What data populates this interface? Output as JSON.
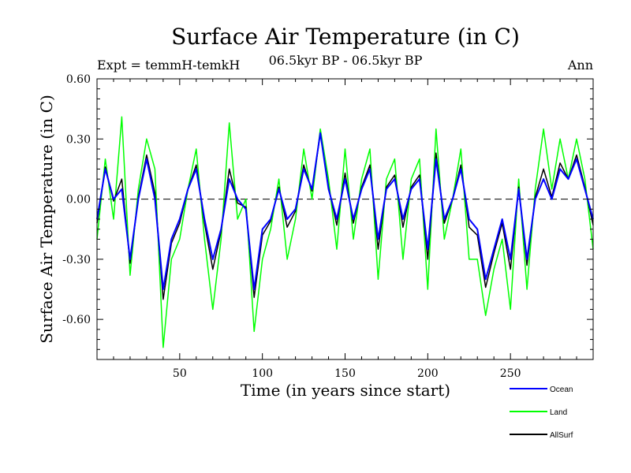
{
  "chart_data": {
    "type": "line",
    "title": "Surface Air Temperature (in C)",
    "subtitle": "06.5kyr BP - 06.5kyr BP",
    "experiment": "Expt = temmH-temkH",
    "season": "Ann",
    "xlabel": "Time (in years since start)",
    "ylabel": "Surface Air Temperature (in C)",
    "xlim": [
      0,
      300
    ],
    "ylim": [
      -0.8,
      0.6
    ],
    "x_ticks": [
      50,
      100,
      150,
      200,
      250
    ],
    "y_ticks": [
      0.6,
      0.3,
      0.0,
      -0.3,
      -0.6
    ],
    "y_tick_labels": [
      "0.60",
      "0.30",
      "0.00",
      "-0.30",
      "-0.60"
    ],
    "zero_line": true,
    "legend_position": "bottom-right",
    "series": [
      {
        "name": "Ocean",
        "color": "#0000ff",
        "x": [
          0,
          5,
          10,
          15,
          20,
          25,
          30,
          35,
          40,
          45,
          50,
          55,
          60,
          65,
          70,
          75,
          80,
          85,
          90,
          95,
          100,
          105,
          110,
          115,
          120,
          125,
          130,
          135,
          140,
          145,
          150,
          155,
          160,
          165,
          170,
          175,
          180,
          185,
          190,
          195,
          200,
          205,
          210,
          215,
          220,
          225,
          230,
          235,
          240,
          245,
          250,
          255,
          260,
          265,
          270,
          275,
          280,
          285,
          290,
          295,
          300
        ],
        "values": [
          -0.1,
          0.15,
          0.0,
          0.05,
          -0.3,
          0.0,
          0.2,
          0.0,
          -0.45,
          -0.2,
          -0.1,
          0.05,
          0.15,
          -0.1,
          -0.3,
          -0.15,
          0.1,
          0.0,
          -0.05,
          -0.45,
          -0.15,
          -0.1,
          0.05,
          -0.1,
          -0.05,
          0.15,
          0.05,
          0.33,
          0.05,
          -0.1,
          0.1,
          -0.1,
          0.05,
          0.15,
          -0.2,
          0.05,
          0.1,
          -0.1,
          0.05,
          0.1,
          -0.25,
          0.2,
          -0.1,
          0.0,
          0.15,
          -0.1,
          -0.15,
          -0.4,
          -0.25,
          -0.1,
          -0.3,
          0.05,
          -0.3,
          0.0,
          0.1,
          0.0,
          0.15,
          0.1,
          0.2,
          0.05,
          -0.1
        ]
      },
      {
        "name": "Land",
        "color": "#00ff00",
        "x": [
          0,
          5,
          10,
          15,
          20,
          25,
          30,
          35,
          40,
          45,
          50,
          55,
          60,
          65,
          70,
          75,
          80,
          85,
          90,
          95,
          100,
          105,
          110,
          115,
          120,
          125,
          130,
          135,
          140,
          145,
          150,
          155,
          160,
          165,
          170,
          175,
          180,
          185,
          190,
          195,
          200,
          205,
          210,
          215,
          220,
          225,
          230,
          235,
          240,
          245,
          250,
          255,
          260,
          265,
          270,
          275,
          280,
          285,
          290,
          295,
          300
        ],
        "values": [
          -0.2,
          0.2,
          -0.1,
          0.41,
          -0.38,
          0.05,
          0.3,
          0.15,
          -0.74,
          -0.3,
          -0.2,
          0.05,
          0.25,
          -0.2,
          -0.55,
          -0.2,
          0.38,
          -0.1,
          0.0,
          -0.66,
          -0.3,
          -0.15,
          0.1,
          -0.3,
          -0.1,
          0.25,
          0.0,
          0.35,
          0.1,
          -0.25,
          0.25,
          -0.2,
          0.1,
          0.25,
          -0.4,
          0.1,
          0.2,
          -0.3,
          0.1,
          0.2,
          -0.45,
          0.35,
          -0.2,
          0.0,
          0.25,
          -0.3,
          -0.3,
          -0.58,
          -0.35,
          -0.2,
          -0.55,
          0.1,
          -0.45,
          0.05,
          0.35,
          0.05,
          0.3,
          0.1,
          0.3,
          0.1,
          -0.25
        ]
      },
      {
        "name": "AllSurf",
        "color": "#000000",
        "x": [
          0,
          5,
          10,
          15,
          20,
          25,
          30,
          35,
          40,
          45,
          50,
          55,
          60,
          65,
          70,
          75,
          80,
          85,
          90,
          95,
          100,
          105,
          110,
          115,
          120,
          125,
          130,
          135,
          140,
          145,
          150,
          155,
          160,
          165,
          170,
          175,
          180,
          185,
          190,
          195,
          200,
          205,
          210,
          215,
          220,
          225,
          230,
          235,
          240,
          245,
          250,
          255,
          260,
          265,
          270,
          275,
          280,
          285,
          290,
          295,
          300
        ],
        "values": [
          -0.12,
          0.16,
          -0.01,
          0.1,
          -0.32,
          0.01,
          0.22,
          0.03,
          -0.5,
          -0.22,
          -0.12,
          0.05,
          0.17,
          -0.12,
          -0.35,
          -0.16,
          0.15,
          -0.02,
          -0.04,
          -0.49,
          -0.18,
          -0.11,
          0.06,
          -0.14,
          -0.06,
          0.17,
          0.04,
          0.33,
          0.06,
          -0.13,
          0.13,
          -0.12,
          0.06,
          0.17,
          -0.25,
          0.06,
          0.12,
          -0.14,
          0.06,
          0.12,
          -0.3,
          0.23,
          -0.12,
          0.0,
          0.17,
          -0.14,
          -0.18,
          -0.44,
          -0.27,
          -0.12,
          -0.35,
          0.06,
          -0.33,
          0.01,
          0.15,
          0.01,
          0.18,
          0.1,
          0.22,
          0.06,
          -0.13
        ]
      }
    ]
  }
}
